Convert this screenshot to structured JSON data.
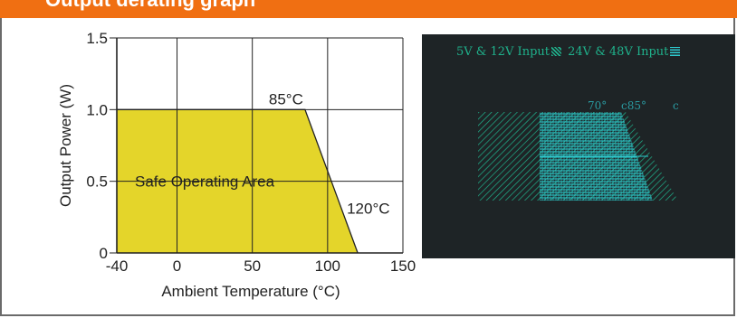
{
  "header": {
    "title": "Output derating graph",
    "bg_color": "#f06f12"
  },
  "chart_data": [
    {
      "type": "area",
      "title": "",
      "xlabel": "Ambient Temperature (°C)",
      "ylabel": "Output Power (W)",
      "xlim": [
        -40,
        150
      ],
      "ylim": [
        0,
        1.5
      ],
      "xticks": [
        -40,
        0,
        50,
        100,
        150
      ],
      "yticks": [
        0,
        0.5,
        1.0,
        1.5
      ],
      "xtick_labels": [
        "-40",
        "0",
        "50",
        "100",
        "150"
      ],
      "ytick_labels": [
        "0",
        "0.5",
        "1.0",
        "1.5"
      ],
      "grid": true,
      "fill_color": "#e4d52a",
      "series": [
        {
          "x": [
            -40,
            85,
            120
          ],
          "y": [
            1.0,
            1.0,
            0
          ]
        }
      ],
      "annotations": [
        {
          "text": "85°C",
          "x": 85,
          "y": 1.0
        },
        {
          "text": "120°C",
          "x": 120,
          "y": 0.25
        },
        {
          "text": "Safe Operating Area",
          "x": 10,
          "y": 0.5
        }
      ]
    },
    {
      "type": "area",
      "legend": [
        "5V & 12V Input",
        "24V & 48V Input"
      ],
      "legend_position": "top",
      "annotations": [
        {
          "text": "70°",
          "x": 70
        },
        {
          "text": "c85°",
          "x": 85
        },
        {
          "text": "c",
          "x": 100
        }
      ],
      "colors": [
        "#1fb28c",
        "#2ecbd0"
      ],
      "background": "#1e2426"
    }
  ]
}
